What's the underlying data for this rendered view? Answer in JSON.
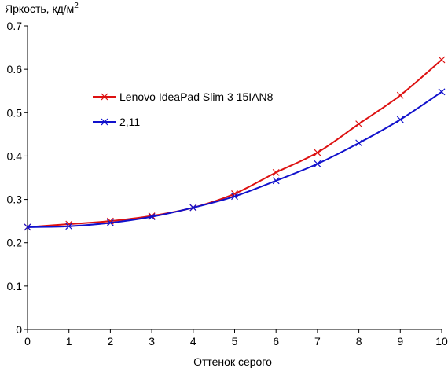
{
  "chart_data": {
    "type": "line",
    "ylabel": "Яркость, кд/м",
    "ylabel_sup": "2",
    "xlabel": "Оттенок серого",
    "xlim": [
      0,
      10
    ],
    "ylim": [
      0,
      0.7
    ],
    "x_ticks": [
      "0",
      "1",
      "2",
      "3",
      "4",
      "5",
      "6",
      "7",
      "8",
      "9",
      "10"
    ],
    "y_ticks": [
      "0",
      "0.1",
      "0.2",
      "0.3",
      "0.4",
      "0.5",
      "0.6",
      "0.7"
    ],
    "grid": false,
    "legend_position": "upper-left-center",
    "x": [
      0,
      1,
      2,
      3,
      4,
      5,
      6,
      7,
      8,
      9,
      10
    ],
    "series": [
      {
        "name": "Lenovo IdeaPad Slim 3 15IAN8",
        "color": "#dd1111",
        "values": [
          0.236,
          0.243,
          0.25,
          0.262,
          0.281,
          0.313,
          0.362,
          0.408,
          0.474,
          0.54,
          0.622
        ]
      },
      {
        "name": "2,11",
        "color": "#1111cc",
        "values": [
          0.236,
          0.238,
          0.246,
          0.26,
          0.281,
          0.307,
          0.343,
          0.382,
          0.43,
          0.484,
          0.548
        ]
      }
    ]
  }
}
